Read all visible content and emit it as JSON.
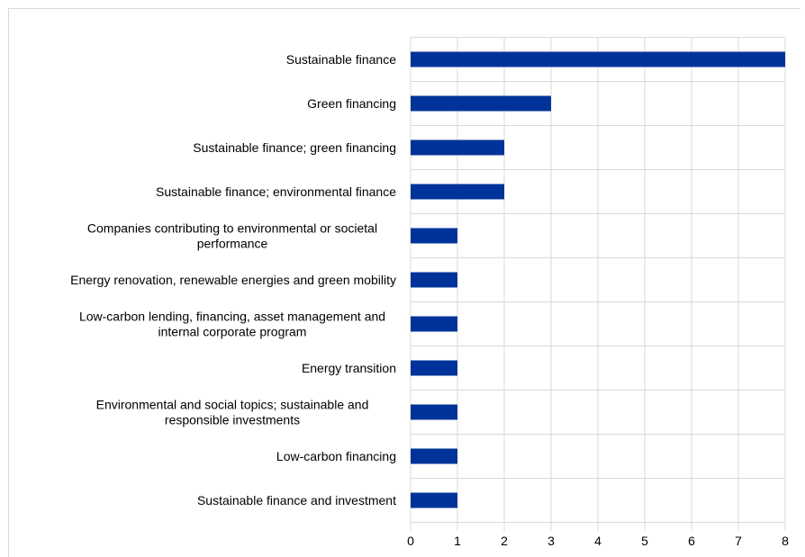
{
  "chart_data": {
    "type": "bar",
    "orientation": "horizontal",
    "categories": [
      [
        "Sustainable finance"
      ],
      [
        "Green financing"
      ],
      [
        "Sustainable finance; green financing"
      ],
      [
        "Sustainable finance; environmental finance"
      ],
      [
        "Companies contributing to environmental or societal",
        "performance"
      ],
      [
        "Energy renovation, renewable energies and green mobility"
      ],
      [
        "Low-carbon lending, financing, asset management and",
        "internal corporate program"
      ],
      [
        "Energy transition"
      ],
      [
        "Environmental and social topics; sustainable and",
        "responsible investments"
      ],
      [
        "Low-carbon financing"
      ],
      [
        "Sustainable finance and investment"
      ]
    ],
    "values": [
      8,
      3,
      2,
      2,
      1,
      1,
      1,
      1,
      1,
      1,
      1
    ],
    "xlim": [
      0,
      8
    ],
    "xticks": [
      "0",
      "1",
      "2",
      "3",
      "4",
      "5",
      "6",
      "7",
      "8"
    ],
    "title": "",
    "xlabel": "",
    "ylabel": "",
    "grid": "vertical",
    "legend": "none",
    "colors": {
      "bar": "#003399",
      "grid": "#d9d9d9",
      "text": "#000000"
    }
  }
}
